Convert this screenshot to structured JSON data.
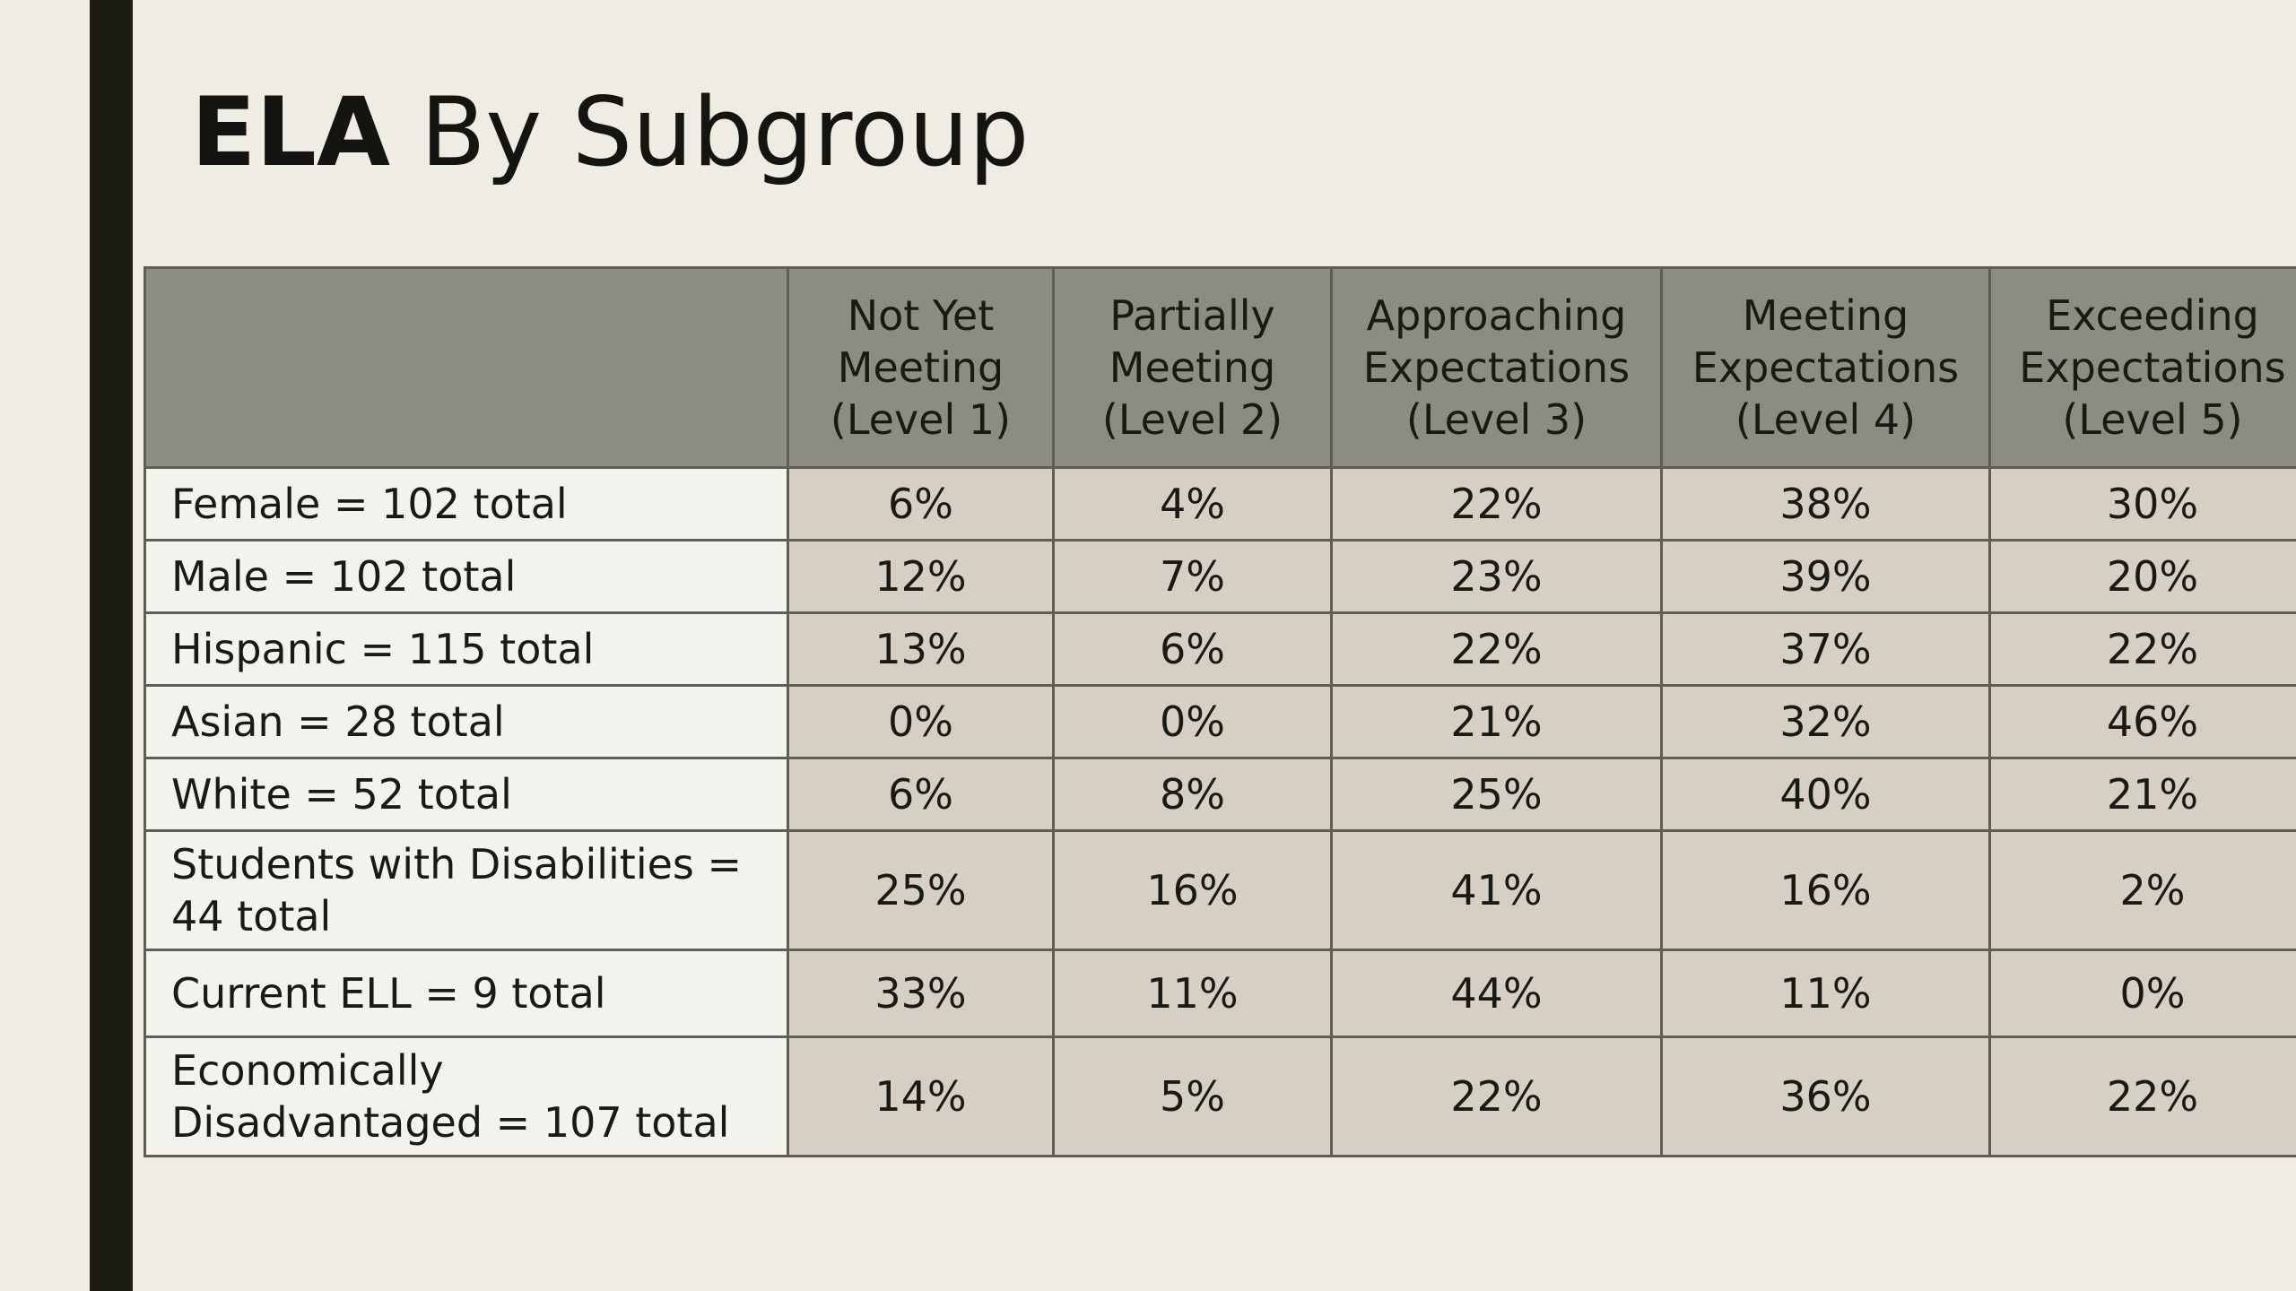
{
  "slide": {
    "title_bold": "ELA",
    "title_rest": " By Subgroup"
  },
  "table": {
    "headers": [
      "",
      "Not Yet\nMeeting\n(Level 1)",
      "Partially\nMeeting\n(Level 2)",
      "Approaching\nExpectations\n(Level 3)",
      "Meeting\nExpectations\n(Level 4)",
      "Exceeding\nExpectations\n(Level 5)"
    ],
    "rows": [
      {
        "label": "Female = 102 total",
        "values": [
          "6%",
          "4%",
          "22%",
          "38%",
          "30%"
        ]
      },
      {
        "label": "Male = 102 total",
        "values": [
          "12%",
          "7%",
          "23%",
          "39%",
          "20%"
        ]
      },
      {
        "label": "Hispanic = 115 total",
        "values": [
          "13%",
          "6%",
          "22%",
          "37%",
          "22%"
        ]
      },
      {
        "label": "Asian = 28 total",
        "values": [
          "0%",
          "0%",
          "21%",
          "32%",
          "46%"
        ]
      },
      {
        "label": "White = 52 total",
        "values": [
          "6%",
          "8%",
          "25%",
          "40%",
          "21%"
        ]
      },
      {
        "label": "Students with Disabilities =\n44 total",
        "values": [
          "25%",
          "16%",
          "41%",
          "16%",
          "2%"
        ]
      },
      {
        "label": "Current ELL = 9 total",
        "values": [
          "33%",
          "11%",
          "44%",
          "11%",
          "0%"
        ]
      },
      {
        "label": "Economically\n Disadvantaged =  107 total",
        "values": [
          "14%",
          "5%",
          "22%",
          "36%",
          "22%"
        ]
      }
    ]
  }
}
